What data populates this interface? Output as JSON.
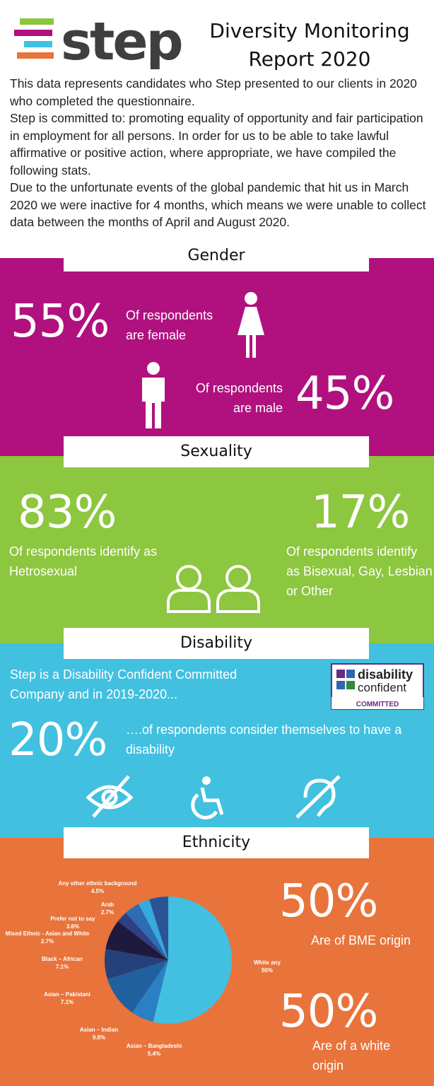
{
  "header": {
    "logo": "step",
    "title": "Diversity Monitoring Report 2020"
  },
  "intro": [
    "This data represents candidates who Step presented to our clients in 2020 who completed the questionnaire.",
    "Step is committed to: promoting equality of opportunity and fair participation in employment for all persons. In order for us to be able to take lawful affirmative or positive action, where appropriate, we have compiled the following stats.",
    "Due to the unfortunate events of the global pandemic that hit us in March 2020 we were inactive for 4 months, which means we were unable to collect data between the months of April and August 2020."
  ],
  "gender": {
    "heading": "Gender",
    "stats": [
      {
        "value": "55%",
        "text": "Of respondents are female"
      },
      {
        "value": "45%",
        "text": "Of respondents are male"
      }
    ]
  },
  "sexuality": {
    "heading": "Sexuality",
    "stats": [
      {
        "value": "83%",
        "text": "Of respondents identify as Hetrosexual"
      },
      {
        "value": "17%",
        "text": "Of respondents identify as Bisexual, Gay, Lesbian or Other"
      }
    ]
  },
  "disability": {
    "heading": "Disability",
    "intro": "Step is a Disability Confident Committed Company and in 2019-2020...",
    "badge": [
      "disability",
      "confident",
      "COMMITTED"
    ],
    "stat": {
      "value": "20%",
      "text": "….of respondents consider themselves to have a disability"
    }
  },
  "ethnicity": {
    "heading": "Ethnicity",
    "chart_data": {
      "type": "pie",
      "categories": [
        "White any",
        "Asian – Bangladeshi",
        "Asian – Indian",
        "Asian – Pakistani",
        "Black – African",
        "Mixed Ethnic - Asian and White",
        "Prefer not to say",
        "Arab",
        "Any other ethnic background"
      ],
      "values": [
        50,
        5.4,
        9.8,
        7.1,
        7.1,
        2.7,
        3.6,
        2.7,
        4.5
      ],
      "value_labels": [
        "50%",
        "5.4%",
        "9.8%",
        "7.1%",
        "7.1%",
        "2.7%",
        "3.6%",
        "2.7%",
        "4.5%"
      ],
      "colors": [
        "#41c0e2",
        "#2a80c4",
        "#20609f",
        "#26417a",
        "#1e1a3e",
        "#2f3f83",
        "#2d6cb0",
        "#36a9de",
        "#2b5497"
      ]
    },
    "stats": [
      {
        "value": "50%",
        "text": "Are of BME origin"
      },
      {
        "value": "50%",
        "text": "Are of a white origin"
      }
    ]
  }
}
